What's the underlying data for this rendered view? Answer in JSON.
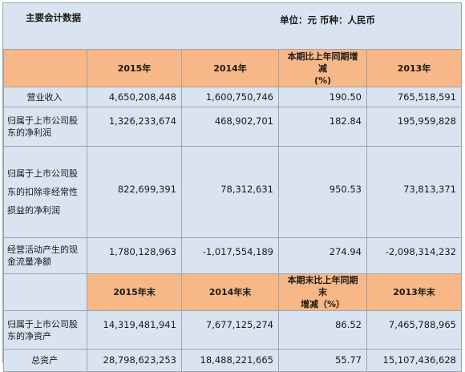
{
  "header": {
    "title": "主要会计数据",
    "unit": "单位：元  币种：人民币"
  },
  "section1": {
    "columns": [
      "2015年",
      "2014年",
      "本期比上年同期增减",
      "(%)",
      "2013年"
    ]
  },
  "rows1": [
    {
      "label": "营业收入",
      "v2015": "4,650,208,448",
      "v2014": "1,600,750,746",
      "change": "190.50",
      "v2013": "765,518,591"
    },
    {
      "label_lines": [
        "归属于上市公司股",
        "东的净利润"
      ],
      "v2015": "1,326,233,674",
      "v2014": "468,902,701",
      "change": "182.84",
      "v2013": "195,959,828"
    },
    {
      "label_lines": [
        "归属于上市公司股",
        "东的扣除非经常性",
        "损益的净利润"
      ],
      "v2015": "822,699,391",
      "v2014": "78,312,631",
      "change": "950.53",
      "v2013": "73,813,371"
    },
    {
      "label_lines": [
        "经营活动产生的现",
        "金流量净额"
      ],
      "v2015": "1,780,128,963",
      "v2014": "-1,017,554,189",
      "change": "274.94",
      "v2013": "-2,098,314,232"
    }
  ],
  "section2": {
    "columns": [
      "2015年末",
      "2014年末",
      "本期末比上年同期末",
      "增减（%）",
      "2013年末"
    ]
  },
  "rows2": [
    {
      "label_lines": [
        "归属于上市公司股",
        "东的净资产"
      ],
      "v2015": "14,319,481,941",
      "v2014": "7,677,125,274",
      "change": "86.52",
      "v2013": "7,465,788,965"
    },
    {
      "label": "总资产",
      "v2015": "28,798,623,253",
      "v2014": "18,488,221,665",
      "change": "55.77",
      "v2013": "15,107,436,628"
    }
  ]
}
